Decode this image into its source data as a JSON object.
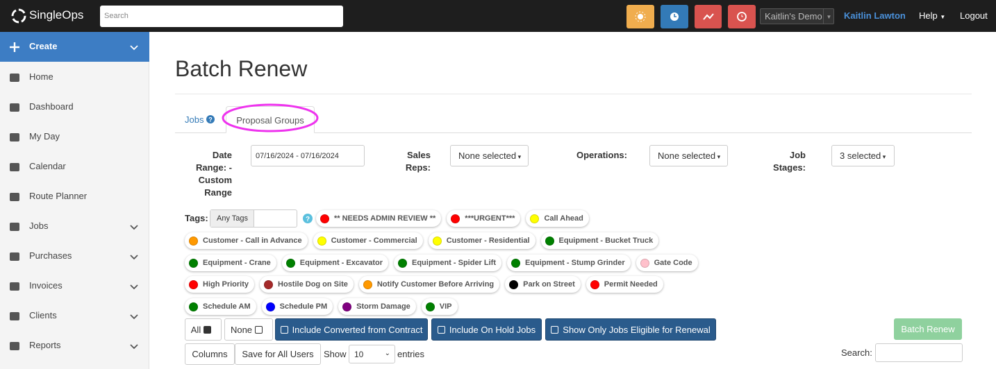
{
  "topbar": {
    "brand": "SingleOps",
    "search_placeholder": "Search",
    "account": "Kaitlin's Demo",
    "user": "Kaitlin Lawton",
    "help": "Help",
    "logout": "Logout"
  },
  "sidebar": {
    "items": [
      {
        "label": "Create",
        "expandable": true
      },
      {
        "label": "Home",
        "expandable": false
      },
      {
        "label": "Dashboard",
        "expandable": false
      },
      {
        "label": "My Day",
        "expandable": false
      },
      {
        "label": "Calendar",
        "expandable": false
      },
      {
        "label": "Route Planner",
        "expandable": false
      },
      {
        "label": "Jobs",
        "expandable": true
      },
      {
        "label": "Purchases",
        "expandable": true
      },
      {
        "label": "Invoices",
        "expandable": true
      },
      {
        "label": "Clients",
        "expandable": true
      },
      {
        "label": "Reports",
        "expandable": true
      }
    ]
  },
  "page": {
    "title": "Batch Renew",
    "tabs": [
      "Jobs",
      "Proposal Groups"
    ],
    "filters": [
      {
        "label": "Date Range: - Custom Range",
        "value": "07/16/2024 - 07/16/2024"
      },
      {
        "label": "Sales Reps:",
        "value": "None selected"
      },
      {
        "label": "Operations:",
        "value": "None selected"
      },
      {
        "label": "Job Stages:",
        "value": "3 selected"
      }
    ],
    "tags_label": "Tags:",
    "tags_mode": "Any Tags",
    "tags": [
      {
        "name": "** NEEDS ADMIN REVIEW **",
        "color": "#ff0000"
      },
      {
        "name": "***URGENT***",
        "color": "#ff0000"
      },
      {
        "name": "Call Ahead",
        "color": "#ffff00"
      },
      {
        "name": "Customer - Call in Advance",
        "color": "#ff9900"
      },
      {
        "name": "Customer - Commercial",
        "color": "#ffff00"
      },
      {
        "name": "Customer - Residential",
        "color": "#ffff00"
      },
      {
        "name": "Equipment - Bucket Truck",
        "color": "#008000"
      },
      {
        "name": "Equipment - Crane",
        "color": "#008000"
      },
      {
        "name": "Equipment - Excavator",
        "color": "#008000"
      },
      {
        "name": "Equipment - Spider Lift",
        "color": "#008000"
      },
      {
        "name": "Equipment - Stump Grinder",
        "color": "#008000"
      },
      {
        "name": "Gate Code",
        "color": "#ffc0cb"
      },
      {
        "name": "High Priority",
        "color": "#ff0000"
      },
      {
        "name": "Hostile Dog on Site",
        "color": "#a52a2a"
      },
      {
        "name": "Notify Customer Before Arriving",
        "color": "#ff9900"
      },
      {
        "name": "Park on Street",
        "color": "#000000"
      },
      {
        "name": "Permit Needed",
        "color": "#ff0000"
      },
      {
        "name": "Schedule AM",
        "color": "#008000"
      },
      {
        "name": "Schedule PM",
        "color": "#0000ff"
      },
      {
        "name": "Storm Damage",
        "color": "#800080"
      },
      {
        "name": "VIP",
        "color": "#008000"
      }
    ],
    "select_buttons": [
      "All",
      "None"
    ],
    "toggle_buttons": [
      "Include Converted from Contract",
      "Include On Hold Jobs",
      "Show Only Jobs Eligible for Renewal"
    ],
    "action_button": "Batch Renew",
    "table_controls": {
      "columns": "Columns",
      "save": "Save for All Users",
      "show": "Show",
      "entries_value": "10",
      "entries": "entries",
      "search": "Search:"
    }
  }
}
